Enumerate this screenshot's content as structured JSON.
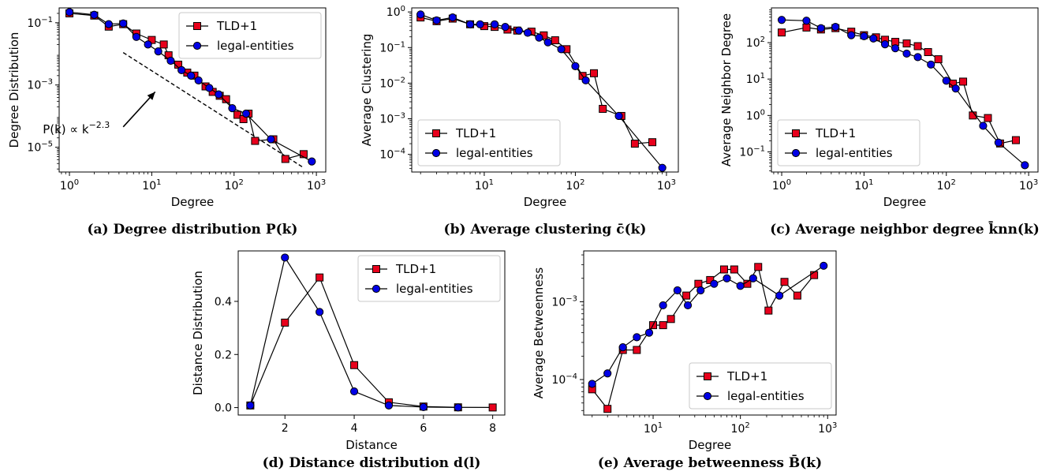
{
  "colors": {
    "tld": "#e8001c",
    "legal": "#0000e6",
    "marker_edge": "#000000",
    "line": "#000000"
  },
  "legend": {
    "tld": "TLD+1",
    "legal": "legal-entities"
  },
  "chart_data": [
    {
      "id": "a",
      "type": "line",
      "caption": "(a) Degree distribution P(k)",
      "xlabel": "Degree",
      "ylabel": "Degree Distribution",
      "xscale": "log",
      "yscale": "log",
      "xlim": [
        0.75,
        1300
      ],
      "ylim": [
        1.6e-06,
        0.3
      ],
      "xticks": [
        {
          "v": 1,
          "base": "10",
          "exp": "0"
        },
        {
          "v": 10,
          "base": "10",
          "exp": "1"
        },
        {
          "v": 100,
          "base": "10",
          "exp": "2"
        },
        {
          "v": 1000,
          "base": "10",
          "exp": "3"
        }
      ],
      "yticks": [
        {
          "v": 0.1,
          "base": "10",
          "exp": "−1"
        },
        {
          "v": 0.001,
          "base": "10",
          "exp": "−3"
        },
        {
          "v": 1e-05,
          "base": "10",
          "exp": "−5"
        }
      ],
      "legend_position": "top-right",
      "annotation": {
        "text_pre": "P(k) ∝ k",
        "text_exp": "−2.3",
        "arrow_from": [
          4.5,
          4.5e-05
        ],
        "arrow_to": [
          11,
          0.0006
        ]
      },
      "reference_line": {
        "from": [
          4.5,
          0.011
        ],
        "to": [
          700,
          2.2e-06
        ]
      },
      "series": [
        {
          "name": "TLD+1",
          "color_key": "tld",
          "marker": "square",
          "x": [
            1,
            2,
            3,
            4.5,
            6.5,
            10,
            14,
            16,
            21,
            27,
            33,
            45,
            55,
            67,
            80,
            110,
            130,
            150,
            180,
            300,
            420,
            700
          ],
          "y": [
            0.2,
            0.17,
            0.075,
            0.09,
            0.045,
            0.028,
            0.02,
            0.009,
            0.0045,
            0.0025,
            0.002,
            0.0009,
            0.0006,
            0.00045,
            0.00035,
            0.00011,
            8e-05,
            0.00012,
            1.6e-05,
            1.8e-05,
            4.2e-06,
            6e-06
          ]
        },
        {
          "name": "legal-entities",
          "color_key": "legal",
          "marker": "circle",
          "x": [
            1,
            2,
            3,
            4.5,
            6.5,
            9,
            12,
            17,
            23,
            30,
            37,
            50,
            65,
            95,
            140,
            280,
            880
          ],
          "y": [
            0.22,
            0.18,
            0.09,
            0.095,
            0.035,
            0.02,
            0.012,
            0.006,
            0.003,
            0.002,
            0.0014,
            0.0008,
            0.0005,
            0.00018,
            0.00012,
            1.8e-05,
            3.5e-06
          ]
        }
      ]
    },
    {
      "id": "b",
      "type": "line",
      "caption": "(b) Average clustering c̄(k)",
      "xlabel": "Degree",
      "ylabel": "Average Clustering",
      "xscale": "log",
      "yscale": "log",
      "xlim": [
        1.6,
        1350
      ],
      "ylim": [
        3.2e-05,
        1.3
      ],
      "xticks": [
        {
          "v": 10,
          "base": "10",
          "exp": "1"
        },
        {
          "v": 100,
          "base": "10",
          "exp": "2"
        },
        {
          "v": 1000,
          "base": "10",
          "exp": "3"
        }
      ],
      "yticks": [
        {
          "v": 1,
          "base": "10",
          "exp": "0"
        },
        {
          "v": 0.1,
          "base": "10",
          "exp": "−1"
        },
        {
          "v": 0.01,
          "base": "10",
          "exp": "−2"
        },
        {
          "v": 0.001,
          "base": "10",
          "exp": "−3"
        },
        {
          "v": 0.0001,
          "base": "10",
          "exp": "−4"
        }
      ],
      "legend_position": "bottom-left",
      "series": [
        {
          "name": "TLD+1",
          "color_key": "tld",
          "marker": "square",
          "x": [
            2,
            3,
            4.5,
            7,
            10,
            13,
            18,
            23,
            33,
            45,
            60,
            80,
            120,
            160,
            200,
            320,
            450,
            700
          ],
          "y": [
            0.7,
            0.55,
            0.65,
            0.45,
            0.4,
            0.38,
            0.32,
            0.3,
            0.28,
            0.22,
            0.16,
            0.09,
            0.016,
            0.019,
            0.0019,
            0.0012,
            0.0002,
            0.00022
          ]
        },
        {
          "name": "legal-entities",
          "color_key": "legal",
          "marker": "circle",
          "x": [
            2,
            3,
            4.5,
            7,
            9,
            13,
            17,
            24,
            30,
            40,
            50,
            70,
            100,
            130,
            300,
            900
          ],
          "y": [
            0.85,
            0.58,
            0.7,
            0.45,
            0.45,
            0.45,
            0.38,
            0.3,
            0.26,
            0.19,
            0.14,
            0.09,
            0.03,
            0.012,
            0.0012,
            4.2e-05
          ]
        }
      ]
    },
    {
      "id": "c",
      "type": "line",
      "caption": "(c) Average neighbor degree k̄nn(k)",
      "xlabel": "Degree",
      "ylabel": "Average Neighbor Degree",
      "xscale": "log",
      "yscale": "log",
      "xlim": [
        0.75,
        1300
      ],
      "ylim": [
        0.028,
        900
      ],
      "xticks": [
        {
          "v": 1,
          "base": "10",
          "exp": "0"
        },
        {
          "v": 10,
          "base": "10",
          "exp": "1"
        },
        {
          "v": 100,
          "base": "10",
          "exp": "2"
        },
        {
          "v": 1000,
          "base": "10",
          "exp": "3"
        }
      ],
      "yticks": [
        {
          "v": 100,
          "base": "10",
          "exp": "2"
        },
        {
          "v": 10,
          "base": "10",
          "exp": "1"
        },
        {
          "v": 1,
          "base": "10",
          "exp": "0"
        },
        {
          "v": 0.1,
          "base": "10",
          "exp": "−1"
        }
      ],
      "legend_position": "bottom-left",
      "series": [
        {
          "name": "TLD+1",
          "color_key": "tld",
          "marker": "square",
          "x": [
            1,
            2,
            3,
            4.5,
            7,
            10,
            14,
            18,
            24,
            33,
            45,
            60,
            80,
            120,
            160,
            210,
            320,
            450,
            700
          ],
          "y": [
            190,
            260,
            230,
            250,
            200,
            160,
            140,
            120,
            105,
            95,
            80,
            55,
            35,
            7.5,
            8.5,
            1.0,
            0.85,
            0.17,
            0.21
          ]
        },
        {
          "name": "legal-entities",
          "color_key": "legal",
          "marker": "circle",
          "x": [
            1,
            2,
            3,
            4.5,
            7,
            10,
            13,
            18,
            24,
            33,
            45,
            65,
            100,
            130,
            280,
            430,
            900
          ],
          "y": [
            420,
            400,
            250,
            270,
            160,
            150,
            130,
            90,
            70,
            50,
            40,
            25,
            9,
            5.5,
            0.52,
            0.18,
            0.043
          ]
        }
      ]
    },
    {
      "id": "d",
      "type": "line",
      "caption": "(d) Distance distribution d(l)",
      "xlabel": "Distance",
      "ylabel": "Distance Distribution",
      "xscale": "linear",
      "yscale": "linear",
      "xlim": [
        0.65,
        8.35
      ],
      "ylim": [
        -0.028,
        0.59
      ],
      "xticks": [
        {
          "v": 2,
          "label": "2"
        },
        {
          "v": 4,
          "label": "4"
        },
        {
          "v": 6,
          "label": "6"
        },
        {
          "v": 8,
          "label": "8"
        }
      ],
      "yticks": [
        {
          "v": 0,
          "label": "0.0"
        },
        {
          "v": 0.2,
          "label": "0.2"
        },
        {
          "v": 0.4,
          "label": "0.4"
        }
      ],
      "legend_position": "top-right",
      "series": [
        {
          "name": "TLD+1",
          "color_key": "tld",
          "marker": "square",
          "x": [
            1,
            2,
            3,
            4,
            5,
            6,
            7,
            8
          ],
          "y": [
            0.008,
            0.32,
            0.49,
            0.16,
            0.02,
            0.004,
            0.001,
            0.0005
          ]
        },
        {
          "name": "legal-entities",
          "color_key": "legal",
          "marker": "circle",
          "x": [
            1,
            2,
            3,
            4,
            5,
            6,
            7
          ],
          "y": [
            0.008,
            0.565,
            0.36,
            0.061,
            0.008,
            0.002,
            0.0005
          ]
        }
      ]
    },
    {
      "id": "e",
      "type": "line",
      "caption": "(e) Average betweenness B̄(k)",
      "xlabel": "Degree",
      "ylabel": "Average Betweenness",
      "xscale": "log",
      "yscale": "log",
      "xlim": [
        1.6,
        1250
      ],
      "ylim": [
        3.5e-05,
        0.0045
      ],
      "xticks": [
        {
          "v": 10,
          "base": "10",
          "exp": "1"
        },
        {
          "v": 100,
          "base": "10",
          "exp": "2"
        },
        {
          "v": 1000,
          "base": "10",
          "exp": "3"
        }
      ],
      "yticks": [
        {
          "v": 0.001,
          "base": "10",
          "exp": "−3"
        },
        {
          "v": 0.0001,
          "base": "10",
          "exp": "−4"
        }
      ],
      "legend_position": "bottom-right",
      "series": [
        {
          "name": "TLD+1",
          "color_key": "tld",
          "marker": "square",
          "x": [
            2,
            3,
            4.5,
            6.5,
            10,
            13,
            16,
            24,
            33,
            45,
            65,
            85,
            120,
            160,
            210,
            320,
            450,
            700
          ],
          "y": [
            7.5e-05,
            4.2e-05,
            0.00024,
            0.00024,
            0.0005,
            0.0005,
            0.0006,
            0.0012,
            0.0017,
            0.0019,
            0.0026,
            0.0026,
            0.0017,
            0.0028,
            0.00077,
            0.0018,
            0.0012,
            0.0022
          ]
        },
        {
          "name": "legal-entities",
          "color_key": "legal",
          "marker": "circle",
          "x": [
            2,
            3,
            4.5,
            6.5,
            9,
            13,
            19,
            25,
            35,
            50,
            70,
            100,
            140,
            280,
            900
          ],
          "y": [
            8.8e-05,
            0.00012,
            0.00026,
            0.00035,
            0.0004,
            0.0009,
            0.0014,
            0.0009,
            0.0014,
            0.0017,
            0.002,
            0.0016,
            0.002,
            0.0012,
            0.0029
          ]
        }
      ]
    }
  ]
}
